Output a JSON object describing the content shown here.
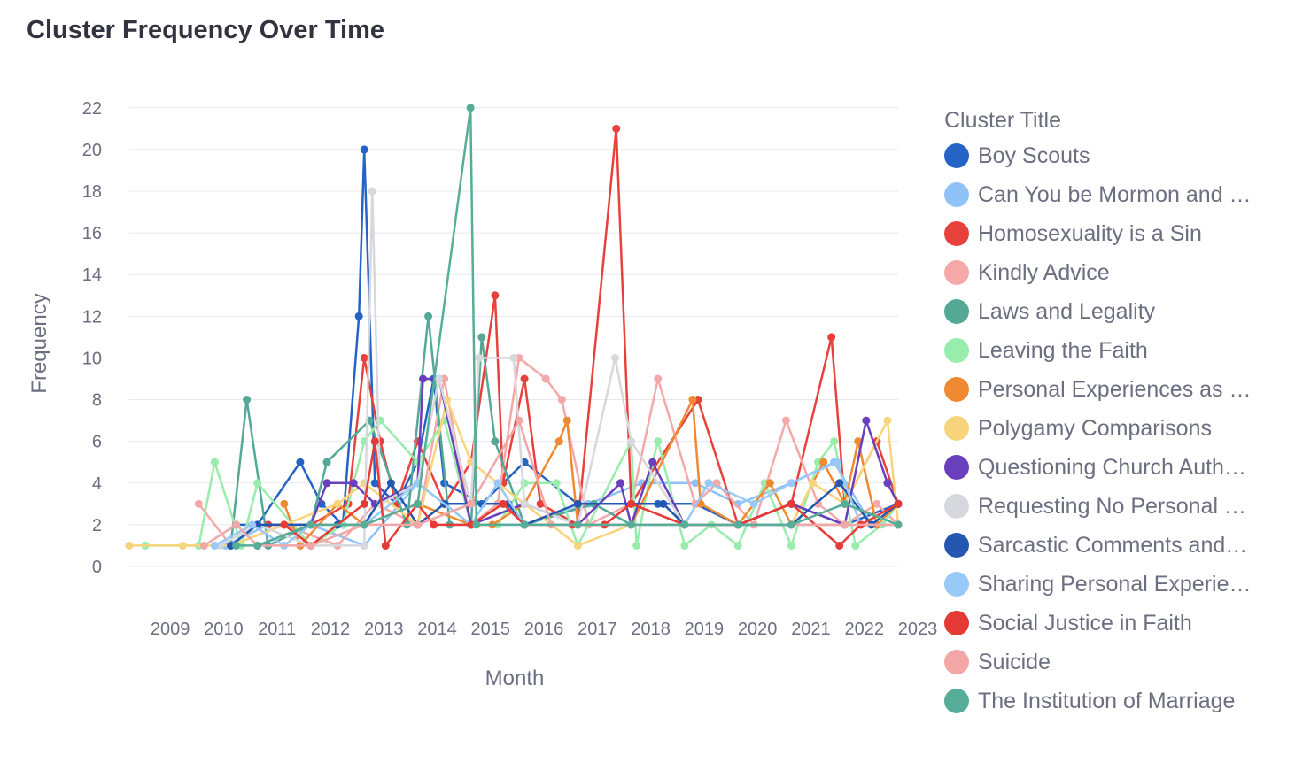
{
  "chart_data": {
    "type": "line",
    "title": "Cluster Frequency Over Time",
    "xlabel": "Month",
    "ylabel": "Frequency",
    "x_ticks": [
      "2009",
      "2010",
      "2011",
      "2012",
      "2013",
      "2014",
      "2015",
      "2016",
      "2017",
      "2018",
      "2019",
      "2020",
      "2021",
      "2022",
      "2023"
    ],
    "y_ticks": [
      0,
      2,
      4,
      6,
      8,
      10,
      12,
      14,
      16,
      18,
      20,
      22
    ],
    "xlim": [
      2008.6,
      2023.0
    ],
    "ylim": [
      0,
      22.5
    ],
    "grid": true,
    "legend_title": "Cluster Title",
    "legend_position": "right",
    "series": [
      {
        "name": "Boy Scouts",
        "color": "#2563c4",
        "x": [
          2010.6,
          2011.0,
          2011.8,
          2012.2,
          2012.6,
          2012.9,
          2013.0,
          2013.2,
          2013.6,
          2014.0,
          2014.3,
          2014.5,
          2015.2,
          2016.0,
          2017.0,
          2018.5,
          2019.2,
          2020.0,
          2021.0,
          2022.0,
          2023.0
        ],
        "y": [
          2,
          2,
          5,
          3,
          2,
          12,
          20,
          4,
          3,
          5,
          9,
          4,
          3,
          5,
          3,
          3,
          3,
          2,
          3,
          2,
          3
        ]
      },
      {
        "name": "Can You be Mormon and …",
        "color": "#8fc3f7",
        "x": [
          2010.4,
          2011.2,
          2012.0,
          2013.0,
          2014.0,
          2015.0,
          2016.0,
          2017.2,
          2018.2,
          2019.2,
          2020.0,
          2021.0,
          2021.8,
          2022.5,
          2023.0
        ],
        "y": [
          1,
          2,
          2,
          1,
          4,
          2,
          2,
          3,
          4,
          4,
          3,
          4,
          5,
          2,
          2
        ]
      },
      {
        "name": "Homosexuality is a Sin",
        "color": "#e8413c",
        "x": [
          2011.2,
          2012.0,
          2012.7,
          2013.0,
          2013.3,
          2013.6,
          2014.0,
          2014.5,
          2015.0,
          2015.45,
          2015.6,
          2016.0,
          2016.3,
          2017.0,
          2017.72,
          2018.0,
          2019.25,
          2020.0,
          2021.0,
          2021.75,
          2022.0,
          2022.6,
          2023.0
        ],
        "y": [
          2,
          2,
          3,
          10,
          6,
          3,
          6,
          3,
          5,
          13,
          4,
          9,
          3,
          2,
          21,
          3,
          8,
          2,
          3,
          11,
          3,
          6,
          3
        ]
      },
      {
        "name": "Kindly Advice",
        "color": "#f4a9a8",
        "x": [
          2009.9,
          2010.5,
          2011.5,
          2012.5,
          2013.2,
          2014.0,
          2014.5,
          2015.0,
          2015.5,
          2015.9,
          2016.4,
          2016.7,
          2017.2,
          2018.0,
          2018.5,
          2019.2,
          2019.6,
          2020.3,
          2020.9,
          2021.5,
          2022.0,
          2022.6,
          2023.0
        ],
        "y": [
          3,
          1,
          2,
          1,
          3,
          2,
          9,
          2,
          3,
          10,
          9,
          8,
          2,
          3,
          9,
          3,
          4,
          2,
          7,
          3,
          2,
          3,
          2
        ]
      },
      {
        "name": "Laws and Legality",
        "color": "#53a996",
        "x": [
          2010.5,
          2010.8,
          2011.2,
          2012.0,
          2012.3,
          2013.1,
          2013.8,
          2014.2,
          2014.6,
          2015.0,
          2015.2,
          2015.45,
          2016.0,
          2017.3,
          2018.0,
          2019.0,
          2020.0,
          2021.0,
          2022.0,
          2023.0
        ],
        "y": [
          1,
          8,
          1,
          2,
          5,
          7,
          2,
          12,
          2,
          2,
          11,
          6,
          2,
          3,
          2,
          2,
          2,
          2,
          2,
          2
        ]
      },
      {
        "name": "Leaving the Faith",
        "color": "#98ecac",
        "x": [
          2008.9,
          2009.9,
          2010.2,
          2010.7,
          2011.0,
          2012.0,
          2012.6,
          2013.0,
          2013.3,
          2014.0,
          2014.5,
          2015.0,
          2015.5,
          2016.0,
          2016.6,
          2017.0,
          2018.0,
          2018.1,
          2018.4,
          2018.5,
          2019.0,
          2019.5,
          2020.0,
          2020.5,
          2021.0,
          2021.5,
          2021.8,
          2022.2,
          2022.7,
          2023.0
        ],
        "y": [
          1,
          1,
          5,
          1,
          4,
          1,
          2,
          6,
          7,
          5,
          7,
          2,
          2,
          4,
          4,
          1,
          6,
          1,
          5,
          6,
          1,
          2,
          1,
          4,
          1,
          5,
          6,
          1,
          2,
          3
        ]
      },
      {
        "name": "Personal Experiences as …",
        "color": "#ef8a32",
        "x": [
          2011.5,
          2011.8,
          2012.5,
          2013.0,
          2014.0,
          2015.0,
          2015.4,
          2016.0,
          2016.65,
          2016.8,
          2017.0,
          2018.0,
          2019.15,
          2019.3,
          2020.0,
          2020.6,
          2021.0,
          2021.6,
          2022.0,
          2022.25,
          2022.6,
          2023.0
        ],
        "y": [
          3,
          1,
          3,
          2,
          3,
          2,
          2,
          3,
          6,
          7,
          2,
          2,
          8,
          3,
          2,
          4,
          2,
          5,
          3,
          6,
          2,
          3
        ]
      },
      {
        "name": "Polygamy Comparisons",
        "color": "#f8d57c",
        "x": [
          2008.6,
          2009.6,
          2010.5,
          2011.5,
          2012.5,
          2013.0,
          2014.0,
          2014.55,
          2015.0,
          2016.0,
          2017.0,
          2018.0,
          2019.0,
          2020.0,
          2021.0,
          2021.4,
          2022.0,
          2022.8,
          2023.0
        ],
        "y": [
          1,
          1,
          1,
          2,
          3,
          4,
          2,
          8,
          5,
          3,
          1,
          2,
          2,
          2,
          2,
          4,
          3,
          7,
          2
        ]
      },
      {
        "name": "Questioning Church Auth…",
        "color": "#6a3fbb",
        "x": [
          2011.0,
          2012.0,
          2012.3,
          2012.8,
          2013.2,
          2014.0,
          2014.1,
          2014.4,
          2015.0,
          2016.0,
          2017.0,
          2017.8,
          2018.0,
          2018.4,
          2019.0,
          2020.0,
          2021.0,
          2022.0,
          2022.4,
          2022.8,
          2023.0
        ],
        "y": [
          1,
          2,
          4,
          4,
          3,
          4,
          9,
          9,
          2,
          3,
          2,
          4,
          2,
          5,
          2,
          2,
          3,
          2,
          7,
          4,
          3
        ]
      },
      {
        "name": "Requesting No Personal …",
        "color": "#d6d8de",
        "x": [
          2010.3,
          2011.0,
          2012.0,
          2013.0,
          2013.15,
          2013.3,
          2014.0,
          2014.4,
          2015.0,
          2015.15,
          2015.8,
          2016.0,
          2017.0,
          2017.7,
          2018.0,
          2019.0,
          2020.0,
          2021.0,
          2022.0,
          2023.0
        ],
        "y": [
          1,
          2,
          1,
          1,
          18,
          3,
          4,
          9,
          3,
          10,
          10,
          3,
          2,
          10,
          6,
          2,
          2,
          2,
          2,
          2
        ]
      },
      {
        "name": "Sarcastic Comments and…",
        "color": "#2457b2",
        "x": [
          2010.5,
          2011.0,
          2012.0,
          2012.5,
          2013.0,
          2013.5,
          2014.0,
          2014.5,
          2015.0,
          2015.7,
          2016.0,
          2017.0,
          2018.0,
          2018.6,
          2019.0,
          2020.0,
          2021.0,
          2021.9,
          2022.5,
          2023.0
        ],
        "y": [
          1,
          2,
          2,
          2,
          2,
          4,
          2,
          3,
          3,
          3,
          2,
          3,
          3,
          3,
          2,
          2,
          2,
          4,
          2,
          3
        ]
      },
      {
        "name": "Sharing Personal Experie…",
        "color": "#98c9f8",
        "x": [
          2010.2,
          2010.9,
          2011.5,
          2012.0,
          2013.0,
          2014.0,
          2015.0,
          2015.5,
          2016.0,
          2017.0,
          2018.0,
          2019.0,
          2019.45,
          2020.3,
          2021.0,
          2021.85,
          2022.3,
          2023.0
        ],
        "y": [
          1,
          2,
          1,
          2,
          2,
          4,
          2,
          4,
          2,
          2,
          2,
          2,
          4,
          3,
          4,
          5,
          2,
          2
        ]
      },
      {
        "name": "Social Justice in Faith",
        "color": "#e53a35",
        "x": [
          2011.5,
          2012.0,
          2013.0,
          2013.2,
          2013.4,
          2014.0,
          2014.3,
          2015.0,
          2015.6,
          2016.0,
          2016.9,
          2017.5,
          2018.0,
          2019.0,
          2020.0,
          2021.0,
          2021.9,
          2022.3,
          2023.0
        ],
        "y": [
          2,
          1,
          3,
          6,
          1,
          3,
          2,
          2,
          3,
          2,
          2,
          2,
          3,
          2,
          2,
          3,
          1,
          2,
          3
        ]
      },
      {
        "name": "Suicide",
        "color": "#f2a6a5",
        "x": [
          2010.0,
          2010.6,
          2011.0,
          2012.0,
          2013.0,
          2014.0,
          2015.0,
          2015.9,
          2016.5,
          2017.0,
          2018.0,
          2019.0,
          2020.0,
          2021.0,
          2022.0,
          2023.0
        ],
        "y": [
          1,
          2,
          1,
          1,
          2,
          2,
          3,
          7,
          2,
          2,
          2,
          2,
          2,
          2,
          2,
          2
        ]
      },
      {
        "name": "The Institution of Marriage",
        "color": "#56ad98",
        "x": [
          2010.6,
          2011.0,
          2012.0,
          2013.0,
          2014.0,
          2014.99,
          2015.1,
          2016.0,
          2017.0,
          2018.0,
          2019.0,
          2020.0,
          2021.0,
          2022.0,
          2023.0
        ],
        "y": [
          1,
          1,
          2,
          2,
          3,
          22,
          2,
          2,
          2,
          2,
          2,
          2,
          2,
          3,
          2
        ]
      }
    ]
  }
}
